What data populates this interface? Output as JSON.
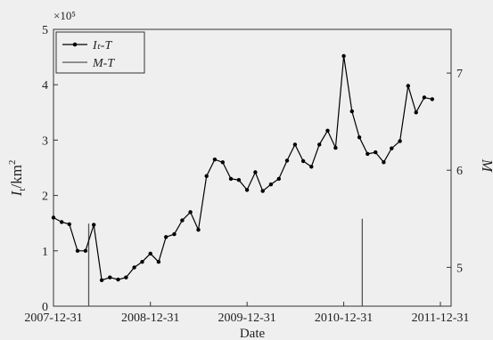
{
  "chart_data": {
    "type": "line",
    "xlabel": "Date",
    "ylabel_left": "Iₜ/km²",
    "ylabel_right": "M",
    "y_multiplier_label": "×10⁵",
    "x_tick_labels": [
      "2007-12-31",
      "2008-12-31",
      "2009-12-31",
      "2010-12-31",
      "2011-12-31"
    ],
    "x_tick_dates": [
      "2007-12-31",
      "2008-12-31",
      "2009-12-31",
      "2010-12-31",
      "2011-12-31"
    ],
    "left_ylim": [
      0,
      5
    ],
    "left_yticks": [
      "0",
      "1",
      "2",
      "3",
      "4",
      "5"
    ],
    "right_ylim": [
      4.6,
      7.45
    ],
    "right_yticks": [
      "5",
      "6",
      "7"
    ],
    "legend_position": "top-left",
    "series": [
      {
        "name": "Iₜ-T",
        "style": "line-with-dots",
        "color": "#000000",
        "axis": "left",
        "points": [
          [
            "2007-12-31",
            1.6
          ],
          [
            "2008-01-31",
            1.52
          ],
          [
            "2008-02-29",
            1.48
          ],
          [
            "2008-03-31",
            1.0
          ],
          [
            "2008-04-30",
            1.0
          ],
          [
            "2008-05-31",
            1.47
          ],
          [
            "2008-06-30",
            0.47
          ],
          [
            "2008-07-31",
            0.52
          ],
          [
            "2008-08-31",
            0.48
          ],
          [
            "2008-09-30",
            0.52
          ],
          [
            "2008-10-31",
            0.7
          ],
          [
            "2008-11-30",
            0.8
          ],
          [
            "2008-12-31",
            0.95
          ],
          [
            "2009-01-31",
            0.8
          ],
          [
            "2009-02-28",
            1.25
          ],
          [
            "2009-03-31",
            1.3
          ],
          [
            "2009-04-30",
            1.55
          ],
          [
            "2009-05-31",
            1.7
          ],
          [
            "2009-06-30",
            1.38
          ],
          [
            "2009-07-31",
            2.35
          ],
          [
            "2009-08-31",
            2.65
          ],
          [
            "2009-09-30",
            2.6
          ],
          [
            "2009-10-31",
            2.3
          ],
          [
            "2009-11-30",
            2.28
          ],
          [
            "2009-12-31",
            2.1
          ],
          [
            "2010-01-31",
            2.42
          ],
          [
            "2010-02-28",
            2.08
          ],
          [
            "2010-03-31",
            2.2
          ],
          [
            "2010-04-30",
            2.3
          ],
          [
            "2010-05-31",
            2.63
          ],
          [
            "2010-06-30",
            2.92
          ],
          [
            "2010-07-31",
            2.62
          ],
          [
            "2010-08-31",
            2.52
          ],
          [
            "2010-09-30",
            2.92
          ],
          [
            "2010-10-31",
            3.17
          ],
          [
            "2010-11-30",
            2.86
          ],
          [
            "2010-12-31",
            4.52
          ],
          [
            "2011-01-31",
            3.52
          ],
          [
            "2011-02-28",
            3.05
          ],
          [
            "2011-03-31",
            2.75
          ],
          [
            "2011-04-30",
            2.78
          ],
          [
            "2011-05-31",
            2.6
          ],
          [
            "2011-06-30",
            2.85
          ],
          [
            "2011-07-31",
            2.98
          ],
          [
            "2011-08-31",
            3.98
          ],
          [
            "2011-09-30",
            3.5
          ],
          [
            "2011-10-31",
            3.77
          ],
          [
            "2011-11-30",
            3.74
          ]
        ]
      },
      {
        "name": "M-T",
        "style": "vertical-bars",
        "color": "#555555",
        "axis": "right",
        "points": [
          [
            "2008-05-12",
            5.45
          ],
          [
            "2011-03-11",
            5.5
          ]
        ]
      }
    ]
  }
}
